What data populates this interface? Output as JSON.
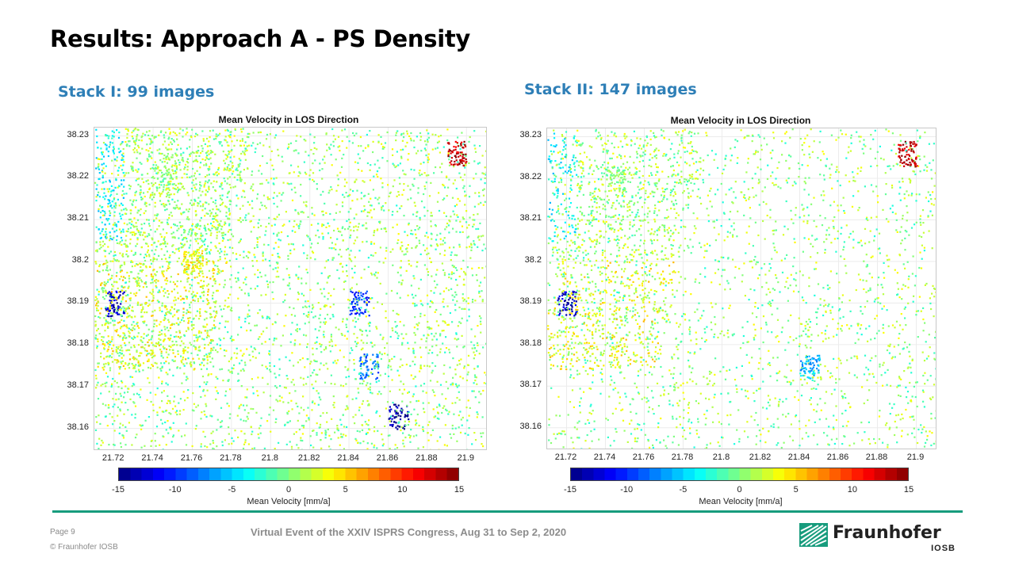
{
  "slide": {
    "title": "Results: Approach A - PS Density",
    "stacks": [
      {
        "label": "Stack I: 99 images"
      },
      {
        "label": "Stack II: 147 images"
      }
    ],
    "colorbar_ticks": [
      "-15",
      "-10",
      "-5",
      "0",
      "5",
      "10",
      "15"
    ],
    "colorbar_label": "Mean Velocity [mm/a]",
    "footer": {
      "page": "Page 9",
      "copyright": "© Fraunhofer IOSB",
      "event": "Virtual Event of the XXIV ISPRS Congress, Aug 31 to Sep 2, 2020",
      "logo_name": "Fraunhofer",
      "logo_sub": "IOSB"
    },
    "colors": {
      "accent_green": "#179c7d",
      "stack_label_blue": "#2e7fb7"
    }
  },
  "chart_data": [
    {
      "type": "scatter",
      "title": "Mean Velocity in LOS Direction",
      "x_ticks": [
        "21.72",
        "21.74",
        "21.76",
        "21.78",
        "21.8",
        "21.82",
        "21.84",
        "21.86",
        "21.88",
        "21.9"
      ],
      "y_ticks": [
        "38.23",
        "38.22",
        "38.21",
        "38.2",
        "38.19",
        "38.18",
        "38.17",
        "38.16"
      ],
      "xlim": [
        21.71,
        21.91
      ],
      "ylim": [
        38.155,
        38.232
      ],
      "colorbar": {
        "min": -15,
        "max": 15,
        "label": "Mean Velocity [mm/a]",
        "colormap": "jet"
      },
      "grid": true,
      "clusters": [
        {
          "x": 21.745,
          "y": 38.22,
          "v": 0,
          "description_level": "dense"
        },
        {
          "x": 21.72,
          "y": 38.19,
          "v": -13
        },
        {
          "x": 21.76,
          "y": 38.2,
          "v": 4
        },
        {
          "x": 21.845,
          "y": 38.19,
          "v": -10
        },
        {
          "x": 21.85,
          "y": 38.175,
          "v": -8
        },
        {
          "x": 21.865,
          "y": 38.163,
          "v": -14
        },
        {
          "x": 21.895,
          "y": 38.226,
          "v": 13
        }
      ]
    },
    {
      "type": "scatter",
      "title": "Mean Velocity in LOS Direction",
      "x_ticks": [
        "21.72",
        "21.74",
        "21.76",
        "21.78",
        "21.8",
        "21.82",
        "21.84",
        "21.86",
        "21.88",
        "21.9"
      ],
      "y_ticks": [
        "38.23",
        "38.22",
        "38.21",
        "38.2",
        "38.19",
        "38.18",
        "38.17",
        "38.16"
      ],
      "xlim": [
        21.71,
        21.91
      ],
      "ylim": [
        38.155,
        38.232
      ],
      "colorbar": {
        "min": -15,
        "max": 15,
        "label": "Mean Velocity [mm/a]",
        "colormap": "jet"
      },
      "grid": true,
      "clusters": [
        {
          "x": 21.745,
          "y": 38.22,
          "v": 0
        },
        {
          "x": 21.72,
          "y": 38.19,
          "v": -13
        },
        {
          "x": 21.845,
          "y": 38.175,
          "v": -6
        },
        {
          "x": 21.895,
          "y": 38.226,
          "v": 13
        }
      ]
    }
  ]
}
